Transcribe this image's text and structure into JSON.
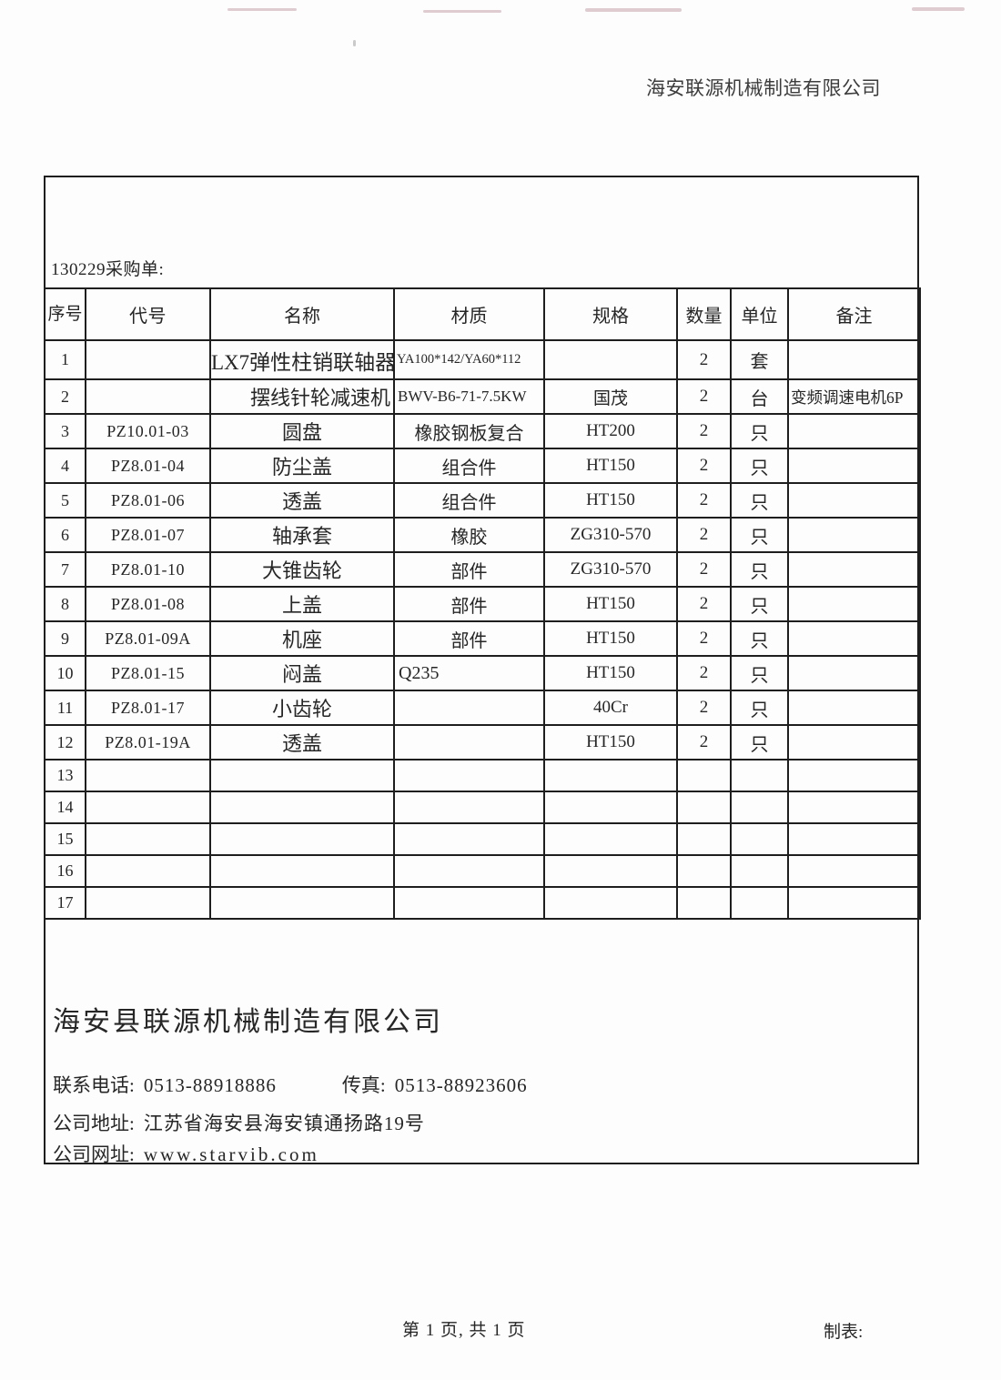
{
  "page": {
    "header_company": "海安联源机械制造有限公司",
    "doc_label": "130229采购单:",
    "footer": {
      "page_info": "第 1 页, 共 1 页",
      "maker_label": "制表:"
    }
  },
  "colors": {
    "paper": "#fdfdfd",
    "ink": "#262626",
    "border": "#1e1e1e"
  },
  "table": {
    "headers": [
      "序号",
      "代号",
      "名称",
      "材质",
      "规格",
      "数量",
      "单位",
      "备注"
    ],
    "rows": [
      {
        "no": "1",
        "code": "",
        "name": "LX7弹性柱销联轴器",
        "material": "YA100*142/YA60*112",
        "spec": "",
        "qty": "2",
        "unit": "套",
        "note": ""
      },
      {
        "no": "2",
        "code": "",
        "name": "摆线针轮减速机",
        "material": "BWV-B6-71-7.5KW",
        "spec": "国茂",
        "qty": "2",
        "unit": "台",
        "note": "变频调速电机6P"
      },
      {
        "no": "3",
        "code": "PZ10.01-03",
        "name": "圆盘",
        "material": "橡胶钢板复合",
        "spec": "HT200",
        "qty": "2",
        "unit": "只",
        "note": ""
      },
      {
        "no": "4",
        "code": "PZ8.01-04",
        "name": "防尘盖",
        "material": "组合件",
        "spec": "HT150",
        "qty": "2",
        "unit": "只",
        "note": ""
      },
      {
        "no": "5",
        "code": "PZ8.01-06",
        "name": "透盖",
        "material": "组合件",
        "spec": "HT150",
        "qty": "2",
        "unit": "只",
        "note": ""
      },
      {
        "no": "6",
        "code": "PZ8.01-07",
        "name": "轴承套",
        "material": "橡胶",
        "spec": "ZG310-570",
        "qty": "2",
        "unit": "只",
        "note": ""
      },
      {
        "no": "7",
        "code": "PZ8.01-10",
        "name": "大锥齿轮",
        "material": "部件",
        "spec": "ZG310-570",
        "qty": "2",
        "unit": "只",
        "note": ""
      },
      {
        "no": "8",
        "code": "PZ8.01-08",
        "name": "上盖",
        "material": "部件",
        "spec": "HT150",
        "qty": "2",
        "unit": "只",
        "note": ""
      },
      {
        "no": "9",
        "code": "PZ8.01-09A",
        "name": "机座",
        "material": "部件",
        "spec": "HT150",
        "qty": "2",
        "unit": "只",
        "note": ""
      },
      {
        "no": "10",
        "code": "PZ8.01-15",
        "name": "闷盖",
        "material": "Q235",
        "spec": "HT150",
        "qty": "2",
        "unit": "只",
        "note": ""
      },
      {
        "no": "11",
        "code": "PZ8.01-17",
        "name": "小齿轮",
        "material": "",
        "spec": "40Cr",
        "qty": "2",
        "unit": "只",
        "note": ""
      },
      {
        "no": "12",
        "code": "PZ8.01-19A",
        "name": "透盖",
        "material": "",
        "spec": "HT150",
        "qty": "2",
        "unit": "只",
        "note": ""
      },
      {
        "no": "13",
        "code": "",
        "name": "",
        "material": "",
        "spec": "",
        "qty": "",
        "unit": "",
        "note": ""
      },
      {
        "no": "14",
        "code": "",
        "name": "",
        "material": "",
        "spec": "",
        "qty": "",
        "unit": "",
        "note": ""
      },
      {
        "no": "15",
        "code": "",
        "name": "",
        "material": "",
        "spec": "",
        "qty": "",
        "unit": "",
        "note": ""
      },
      {
        "no": "16",
        "code": "",
        "name": "",
        "material": "",
        "spec": "",
        "qty": "",
        "unit": "",
        "note": ""
      },
      {
        "no": "17",
        "code": "",
        "name": "",
        "material": "",
        "spec": "",
        "qty": "",
        "unit": "",
        "note": ""
      }
    ]
  },
  "company_block": {
    "name": "海安县联源机械制造有限公司",
    "phone_label": "联系电话:",
    "phone": "0513-88918886",
    "fax_label": "传真:",
    "fax": "0513-88923606",
    "address_label": "公司地址:",
    "address": "江苏省海安县海安镇通扬路19号",
    "website_label": "公司网址:",
    "website": "www.starvib.com"
  }
}
